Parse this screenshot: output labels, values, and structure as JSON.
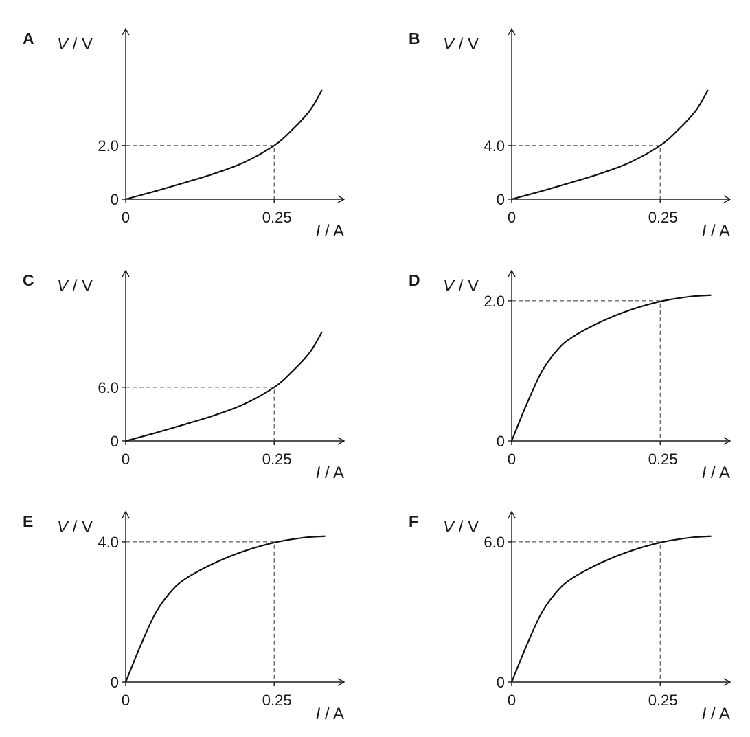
{
  "chart_data": [
    {
      "panel": "A",
      "type": "line",
      "ylabel": "V",
      "yunit": "V",
      "xlabel": "I",
      "xunit": "A",
      "x_ticks": [
        "0",
        "0.25"
      ],
      "y_ticks": [
        "0",
        "2.0"
      ],
      "guide": {
        "x": 0.25,
        "y": 2.0
      },
      "xlim": [
        0,
        0.37
      ],
      "ylim": [
        0,
        6.4
      ],
      "series": [
        {
          "x": [
            0,
            0.05,
            0.1,
            0.15,
            0.2,
            0.25,
            0.28,
            0.31,
            0.33
          ],
          "y": [
            0,
            0.3,
            0.62,
            0.96,
            1.38,
            2.0,
            2.58,
            3.3,
            4.05
          ]
        }
      ]
    },
    {
      "panel": "B",
      "type": "line",
      "ylabel": "V",
      "yunit": "V",
      "xlabel": "I",
      "xunit": "A",
      "x_ticks": [
        "0",
        "0.25"
      ],
      "y_ticks": [
        "0",
        "4.0"
      ],
      "guide": {
        "x": 0.25,
        "y": 4.0
      },
      "xlim": [
        0,
        0.37
      ],
      "ylim": [
        0,
        12.8
      ],
      "series": [
        {
          "x": [
            0,
            0.05,
            0.1,
            0.15,
            0.2,
            0.25,
            0.28,
            0.31,
            0.33
          ],
          "y": [
            0,
            0.6,
            1.24,
            1.92,
            2.76,
            4.0,
            5.16,
            6.6,
            8.1
          ]
        }
      ]
    },
    {
      "panel": "C",
      "type": "line",
      "ylabel": "V",
      "yunit": "V",
      "xlabel": "I",
      "xunit": "A",
      "x_ticks": [
        "0",
        "0.25"
      ],
      "y_ticks": [
        "0",
        "6.0"
      ],
      "guide": {
        "x": 0.25,
        "y": 6.0
      },
      "xlim": [
        0,
        0.37
      ],
      "ylim": [
        0,
        19.2
      ],
      "series": [
        {
          "x": [
            0,
            0.05,
            0.1,
            0.15,
            0.2,
            0.25,
            0.28,
            0.31,
            0.33
          ],
          "y": [
            0,
            0.9,
            1.86,
            2.88,
            4.14,
            6.0,
            7.74,
            9.9,
            12.15
          ]
        }
      ]
    },
    {
      "panel": "D",
      "type": "line",
      "ylabel": "V",
      "yunit": "V",
      "xlabel": "I",
      "xunit": "A",
      "x_ticks": [
        "0",
        "0.25"
      ],
      "y_ticks": [
        "0",
        "2.0"
      ],
      "guide": {
        "x": 0.25,
        "y": 2.0
      },
      "xlim": [
        0,
        0.37
      ],
      "ylim": [
        0,
        2.45
      ],
      "series": [
        {
          "x": [
            0,
            0.025,
            0.05,
            0.075,
            0.1,
            0.15,
            0.2,
            0.25,
            0.3,
            0.335
          ],
          "y": [
            0,
            0.52,
            0.98,
            1.28,
            1.47,
            1.7,
            1.87,
            1.99,
            2.06,
            2.08
          ]
        }
      ]
    },
    {
      "panel": "E",
      "type": "line",
      "ylabel": "V",
      "yunit": "V",
      "xlabel": "I",
      "xunit": "A",
      "x_ticks": [
        "0",
        "0.25"
      ],
      "y_ticks": [
        "0",
        "4.0"
      ],
      "guide": {
        "x": 0.25,
        "y": 4.0
      },
      "xlim": [
        0,
        0.37
      ],
      "ylim": [
        0,
        4.9
      ],
      "series": [
        {
          "x": [
            0,
            0.025,
            0.05,
            0.075,
            0.1,
            0.15,
            0.2,
            0.25,
            0.3,
            0.335
          ],
          "y": [
            0,
            1.04,
            1.96,
            2.56,
            2.94,
            3.4,
            3.74,
            3.98,
            4.12,
            4.16
          ]
        }
      ]
    },
    {
      "panel": "F",
      "type": "line",
      "ylabel": "V",
      "yunit": "V",
      "xlabel": "I",
      "xunit": "A",
      "x_ticks": [
        "0",
        "0.25"
      ],
      "y_ticks": [
        "0",
        "6.0"
      ],
      "guide": {
        "x": 0.25,
        "y": 6.0
      },
      "xlim": [
        0,
        0.37
      ],
      "ylim": [
        0,
        7.35
      ],
      "series": [
        {
          "x": [
            0,
            0.025,
            0.05,
            0.075,
            0.1,
            0.15,
            0.2,
            0.25,
            0.3,
            0.335
          ],
          "y": [
            0,
            1.56,
            2.94,
            3.84,
            4.41,
            5.1,
            5.61,
            5.97,
            6.18,
            6.24
          ]
        }
      ]
    }
  ]
}
